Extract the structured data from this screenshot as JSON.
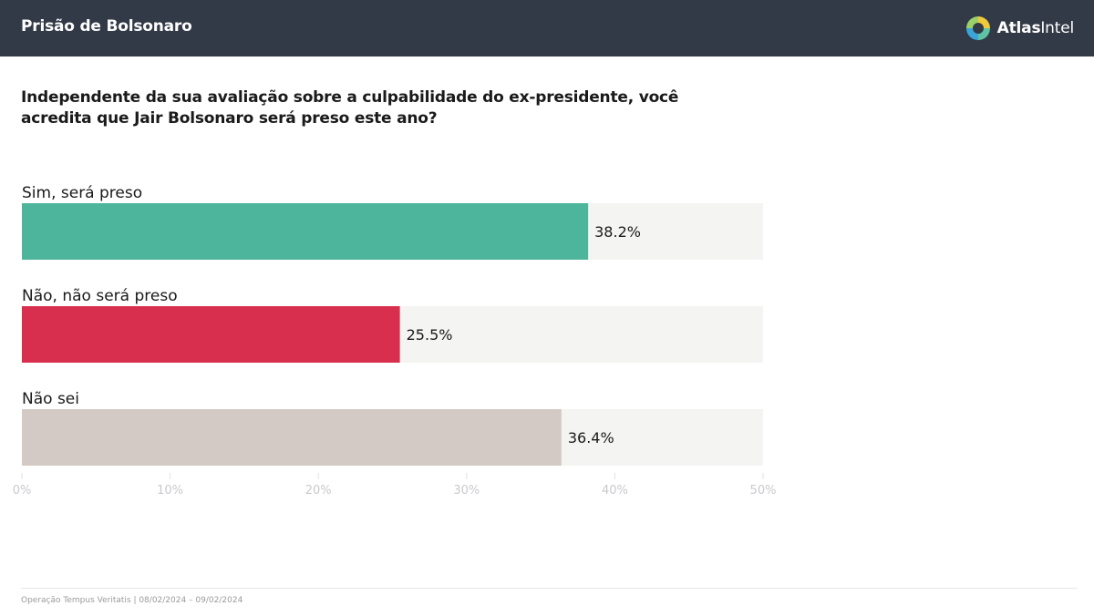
{
  "header": {
    "title": "Prisão de Bolsonaro",
    "brand_strong": "Atlas",
    "brand_light": "Intel"
  },
  "question": "Independente da sua avaliação sobre a culpabilidade do ex-presidente, você acredita que Jair Bolsonaro será preso este ano?",
  "chart_data": {
    "type": "bar",
    "orientation": "horizontal",
    "categories": [
      "Sim, será preso",
      "Não, não será preso",
      "Não sei"
    ],
    "values": [
      38.2,
      25.5,
      36.4
    ],
    "value_labels": [
      "38.2%",
      "25.5%",
      "36.4%"
    ],
    "colors": [
      "#4db59b",
      "#d92f4f",
      "#d3cac5"
    ],
    "track_color": "#f4f4f2",
    "xlim": [
      0,
      50
    ],
    "ticks": [
      0,
      10,
      20,
      30,
      40,
      50
    ],
    "tick_labels": [
      "0%",
      "10%",
      "20%",
      "30%",
      "40%",
      "50%"
    ],
    "grid": false,
    "title": "",
    "xlabel": "",
    "ylabel": ""
  },
  "footer": {
    "source": "Operação Tempus Veritatis | 08/02/2024 – 09/02/2024"
  },
  "colors": {
    "header_bg": "#333a47",
    "header_text": "#ffffff",
    "tick_text": "#c9c9cf"
  },
  "icons": {
    "brand_logo": "atlasintel-logo-icon"
  }
}
